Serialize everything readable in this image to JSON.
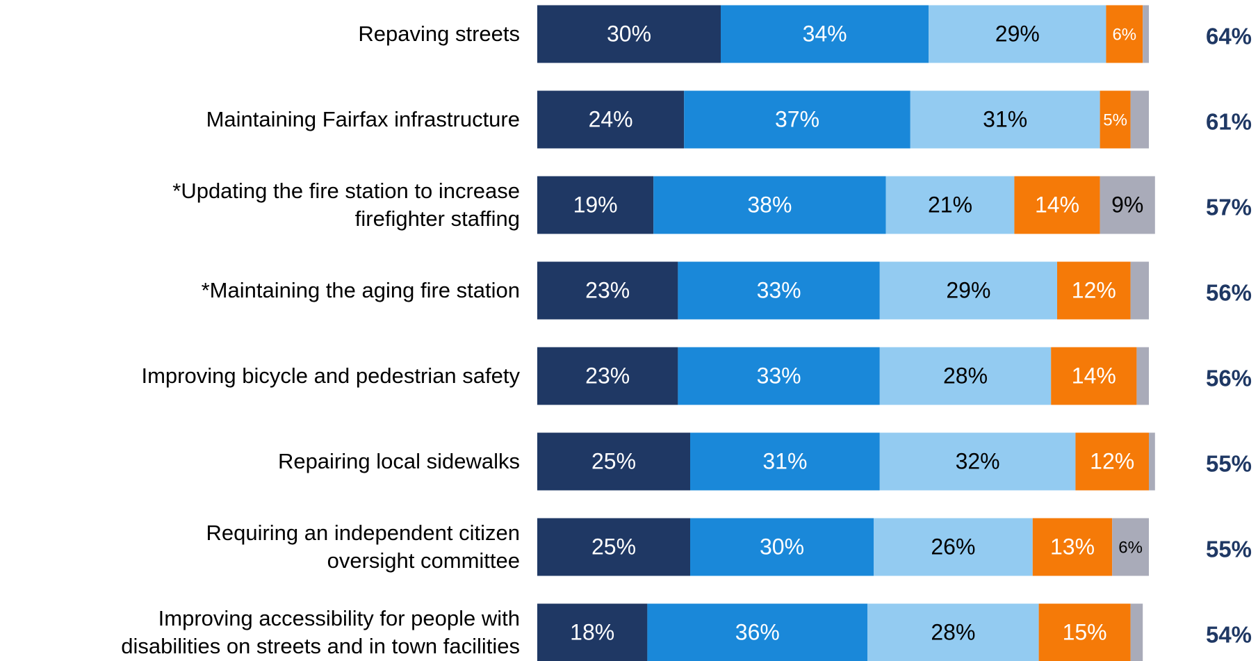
{
  "chart_data": {
    "type": "stacked-bar-horizontal",
    "categories": [
      "Repaving streets",
      "Maintaining Fairfax infrastructure",
      "*Updating the fire station to increase\nfirefighter staffing",
      "*Maintaining the aging fire station",
      "Improving bicycle and pedestrian safety",
      "Repairing local sidewalks",
      "Requiring an independent citizen\noversight committee",
      "Improving accessibility for people with\ndisabilities on streets and in town facilities"
    ],
    "xlim": [
      0,
      100
    ],
    "series": [
      {
        "color": "#1f3864",
        "label_color": "#ffffff",
        "values": [
          30,
          24,
          19,
          23,
          23,
          25,
          25,
          18
        ],
        "value_labels": [
          "30%",
          "24%",
          "19%",
          "23%",
          "23%",
          "25%",
          "25%",
          "18%"
        ]
      },
      {
        "color": "#1a88d9",
        "label_color": "#ffffff",
        "values": [
          34,
          37,
          38,
          33,
          33,
          31,
          30,
          36
        ],
        "value_labels": [
          "34%",
          "37%",
          "38%",
          "33%",
          "33%",
          "31%",
          "30%",
          "36%"
        ]
      },
      {
        "color": "#93cbf1",
        "label_color": "#000000",
        "values": [
          29,
          31,
          21,
          29,
          28,
          32,
          26,
          28
        ],
        "value_labels": [
          "29%",
          "31%",
          "21%",
          "29%",
          "28%",
          "32%",
          "26%",
          "28%"
        ]
      },
      {
        "color": "#f57a08",
        "label_color": "#ffffff",
        "values": [
          6,
          5,
          14,
          12,
          14,
          12,
          13,
          15
        ],
        "value_labels": [
          "6%",
          "5%",
          "14%",
          "12%",
          "14%",
          "12%",
          "13%",
          "15%"
        ]
      },
      {
        "color": "#a9abb9",
        "label_color": "#000000",
        "values": [
          1,
          3,
          9,
          3,
          2,
          1,
          6,
          2
        ],
        "value_labels": [
          null,
          null,
          "9%",
          null,
          null,
          null,
          "6%",
          null
        ]
      }
    ],
    "totals": {
      "color": "#1f3864",
      "values": [
        64,
        61,
        57,
        56,
        56,
        55,
        55,
        54
      ],
      "value_labels": [
        "64%",
        "61%",
        "57%",
        "56%",
        "56%",
        "55%",
        "55%",
        "54%"
      ]
    }
  }
}
